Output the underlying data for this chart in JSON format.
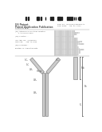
{
  "background_color": "#ffffff",
  "barcode_color": "#222222",
  "text_color": "#555555",
  "gray1": "#aaaaaa",
  "gray2": "#888888",
  "gray3": "#cccccc"
}
